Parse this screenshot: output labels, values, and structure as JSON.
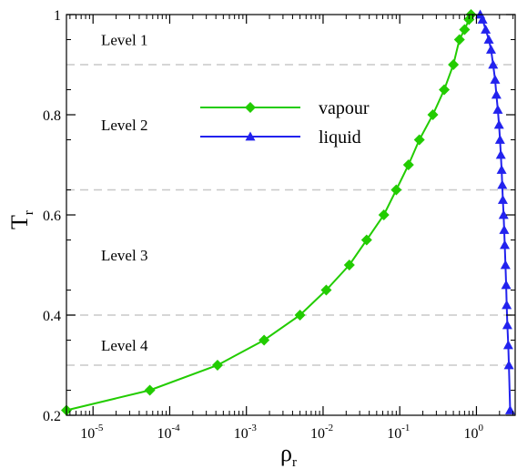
{
  "chart_data": {
    "type": "line",
    "x_scale": "log",
    "xlim": [
      4.5e-06,
      3.2
    ],
    "ylim": [
      0.2,
      1.0
    ],
    "y_ticks": [
      0.2,
      0.4,
      0.6,
      0.8,
      1.0
    ],
    "y_tick_labels": [
      "0.2",
      "0.4",
      "0.6",
      "0.8",
      "1"
    ],
    "x_ticks": [
      {
        "exp": "-5",
        "value": 1e-05
      },
      {
        "exp": "-4",
        "value": 0.0001
      },
      {
        "exp": "-3",
        "value": 0.001
      },
      {
        "exp": "-2",
        "value": 0.01
      },
      {
        "exp": "-1",
        "value": 0.1
      },
      {
        "exp": "0",
        "value": 1
      }
    ],
    "x_tick_base": "10",
    "xlabel": {
      "symbol": "ρ",
      "sub": "r"
    },
    "ylabel": {
      "symbol": "T",
      "sub": "r"
    },
    "grid": false,
    "legend_position": "top-center",
    "level_lines": [
      0.3,
      0.4,
      0.65,
      0.9
    ],
    "level_labels": [
      {
        "text": "Level 1",
        "y": 0.95
      },
      {
        "text": "Level 2",
        "y": 0.78
      },
      {
        "text": "Level 3",
        "y": 0.52
      },
      {
        "text": "Level 4",
        "y": 0.34
      }
    ],
    "series": [
      {
        "name": "vapour",
        "color": "#22cc00",
        "marker": "diamond",
        "x": [
          4.5e-06,
          5.5e-05,
          0.00042,
          0.0017,
          0.005,
          0.011,
          0.022,
          0.037,
          0.062,
          0.09,
          0.13,
          0.18,
          0.27,
          0.38,
          0.5,
          0.6,
          0.7,
          0.8,
          0.85
        ],
        "y": [
          0.21,
          0.25,
          0.3,
          0.35,
          0.4,
          0.45,
          0.5,
          0.55,
          0.6,
          0.65,
          0.7,
          0.75,
          0.8,
          0.85,
          0.9,
          0.95,
          0.97,
          0.99,
          1.0
        ]
      },
      {
        "name": "liquid",
        "color": "#2222ee",
        "marker": "triangle",
        "x": [
          1.12,
          1.2,
          1.32,
          1.45,
          1.55,
          1.65,
          1.75,
          1.82,
          1.9,
          1.97,
          2.03,
          2.08,
          2.13,
          2.17,
          2.21,
          2.26,
          2.3,
          2.34,
          2.39,
          2.44,
          2.48,
          2.53,
          2.6,
          2.65,
          2.75
        ],
        "y": [
          1.0,
          0.99,
          0.97,
          0.95,
          0.93,
          0.9,
          0.87,
          0.84,
          0.81,
          0.78,
          0.75,
          0.72,
          0.69,
          0.66,
          0.63,
          0.6,
          0.57,
          0.54,
          0.5,
          0.46,
          0.42,
          0.38,
          0.34,
          0.3,
          0.21
        ]
      }
    ]
  }
}
